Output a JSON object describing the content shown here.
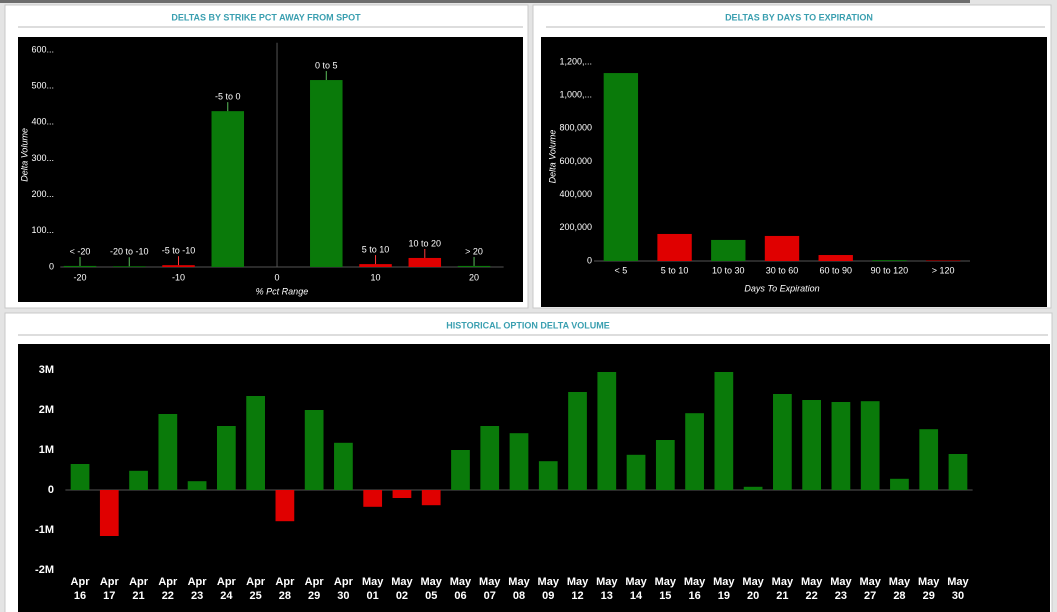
{
  "chart_data": [
    {
      "type": "bar",
      "title": "DELTAS BY STRIKE PCT AWAY FROM SPOT",
      "x_label": "% Pct Range",
      "y_label": "Delta Volume",
      "x": [
        -20,
        -15,
        -10,
        -5,
        5,
        10,
        15,
        20
      ],
      "values": [
        3,
        2,
        5,
        431,
        517,
        8,
        25,
        3
      ],
      "bar_labels": [
        "< -20",
        "-20 to -10",
        "-5 to -10",
        "-5 to 0",
        "0 to 5",
        "5 to 10",
        "10 to 20",
        "> 20"
      ],
      "colors": [
        "#0a7a0a",
        "#0a7a0a",
        "#e00000",
        "#0a7a0a",
        "#0a7a0a",
        "#e00000",
        "#e00000",
        "#0a7a0a"
      ],
      "label_colors": [
        "#5cbf5c",
        "#5cbf5c",
        "#ff3b3b",
        "#5cbf5c",
        "#5cbf5c",
        "#ff3b3b",
        "#ff3b3b",
        "#5cbf5c"
      ],
      "xlim": [
        -22,
        23
      ],
      "xticks": [
        -20,
        -10,
        0,
        10,
        20
      ],
      "x_zero_line": true,
      "ylim": [
        0,
        620
      ],
      "yticks": [
        0,
        {
          "value": 100,
          "label": "100..."
        },
        {
          "value": 200,
          "label": "200..."
        },
        {
          "value": 300,
          "label": "300..."
        },
        {
          "value": 400,
          "label": "400..."
        },
        {
          "value": 500,
          "label": "500..."
        },
        {
          "value": 600,
          "label": "600..."
        }
      ]
    },
    {
      "type": "bar",
      "title": "DELTAS BY DAYS TO EXPIRATION",
      "x_label": "Days To Expiration",
      "y_label": "Delta Volume",
      "categories": [
        "< 5",
        "5 to 10",
        "10 to 30",
        "30 to 60",
        "60 to 90",
        "90 to 120",
        "> 120"
      ],
      "values": [
        1133000,
        163000,
        127000,
        151000,
        36000,
        5000,
        3000
      ],
      "colors": [
        "#0a7a0a",
        "#e00000",
        "#0a7a0a",
        "#e00000",
        "#e00000",
        "#0a7a0a",
        "#e00000"
      ],
      "ylim": [
        0,
        1260000
      ],
      "yticks": [
        0,
        {
          "value": 200000,
          "label": "200,000"
        },
        {
          "value": 400000,
          "label": "400,000"
        },
        {
          "value": 600000,
          "label": "600,000"
        },
        {
          "value": 800000,
          "label": "800,000"
        },
        {
          "value": 1000000,
          "label": "1,000,..."
        },
        {
          "value": 1200000,
          "label": "1,200,..."
        }
      ]
    },
    {
      "type": "bar",
      "title": "HISTORICAL OPTION DELTA VOLUME",
      "categories": [
        [
          "Apr",
          "16"
        ],
        [
          "Apr",
          "17"
        ],
        [
          "Apr",
          "21"
        ],
        [
          "Apr",
          "22"
        ],
        [
          "Apr",
          "23"
        ],
        [
          "Apr",
          "24"
        ],
        [
          "Apr",
          "25"
        ],
        [
          "Apr",
          "28"
        ],
        [
          "Apr",
          "29"
        ],
        [
          "Apr",
          "30"
        ],
        [
          "May",
          "01"
        ],
        [
          "May",
          "02"
        ],
        [
          "May",
          "05"
        ],
        [
          "May",
          "06"
        ],
        [
          "May",
          "07"
        ],
        [
          "May",
          "08"
        ],
        [
          "May",
          "09"
        ],
        [
          "May",
          "12"
        ],
        [
          "May",
          "13"
        ],
        [
          "May",
          "14"
        ],
        [
          "May",
          "15"
        ],
        [
          "May",
          "16"
        ],
        [
          "May",
          "19"
        ],
        [
          "May",
          "20"
        ],
        [
          "May",
          "21"
        ],
        [
          "May",
          "22"
        ],
        [
          "May",
          "23"
        ],
        [
          "May",
          "27"
        ],
        [
          "May",
          "28"
        ],
        [
          "May",
          "29"
        ],
        [
          "May",
          "30"
        ]
      ],
      "values": [
        650000,
        -1150000,
        480000,
        1900000,
        220000,
        1600000,
        2350000,
        -780000,
        2000000,
        1180000,
        -420000,
        -200000,
        -380000,
        1000000,
        1600000,
        1420000,
        720000,
        2450000,
        2950000,
        880000,
        1250000,
        1920000,
        2950000,
        80000,
        2400000,
        2250000,
        2200000,
        2220000,
        280000,
        1520000,
        900000
      ],
      "color": "#0a7a0a",
      "negative_color": "#e00000",
      "ylim": [
        -2100000,
        3400000
      ],
      "yticks": [
        {
          "value": -2000000,
          "label": "-2M"
        },
        {
          "value": -1000000,
          "label": "-1M"
        },
        0,
        {
          "value": 1000000,
          "label": "1M"
        },
        {
          "value": 2000000,
          "label": "2M"
        },
        {
          "value": 3000000,
          "label": "3M"
        }
      ]
    }
  ]
}
